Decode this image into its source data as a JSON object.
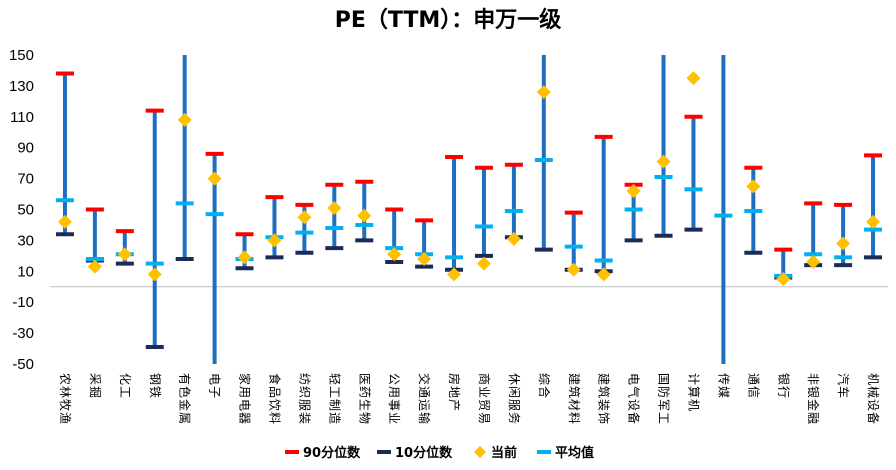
{
  "chart_data": {
    "type": "range",
    "title": "PE（TTM）：申万一级",
    "ylim": [
      -50,
      150
    ],
    "yticks": [
      150,
      130,
      110,
      90,
      70,
      50,
      30,
      10,
      -10,
      -30,
      -50
    ],
    "grid": false,
    "legend_position": "bottom",
    "categories": [
      "农林牧渔",
      "采掘",
      "化工",
      "钢铁",
      "有色金属",
      "电子",
      "家用电器",
      "食品饮料",
      "纺织服装",
      "轻工制造",
      "医药生物",
      "公用事业",
      "交通运输",
      "房地产",
      "商业贸易",
      "休闲服务",
      "综合",
      "建筑材料",
      "建筑装饰",
      "电气设备",
      "国防军工",
      "计算机",
      "传媒",
      "通信",
      "银行",
      "非银金融",
      "汽车",
      "机械设备"
    ],
    "series": [
      {
        "name": "90分位数",
        "color": "#ff0000",
        "values": [
          138,
          50,
          36,
          114,
          150,
          86,
          34,
          58,
          53,
          66,
          68,
          50,
          43,
          84,
          77,
          79,
          150,
          48,
          97,
          66,
          150,
          110,
          150,
          77,
          24,
          54,
          53,
          85
        ]
      },
      {
        "name": "10分位数",
        "color": "#1f5fa8",
        "values": [
          34,
          17,
          15,
          -39,
          18,
          -50,
          12,
          19,
          22,
          25,
          30,
          16,
          13,
          11,
          20,
          32,
          24,
          11,
          10,
          30,
          33,
          37,
          -50,
          22,
          6,
          14,
          14,
          19
        ]
      },
      {
        "name": "当前",
        "color": "#ffc000",
        "values": [
          42,
          13,
          21,
          8,
          108,
          70,
          19,
          30,
          45,
          51,
          46,
          21,
          18,
          8,
          15,
          31,
          126,
          11,
          8,
          62,
          81,
          135,
          null,
          65,
          5,
          16,
          28,
          42
        ]
      },
      {
        "name": "平均值",
        "color": "#00b0f0",
        "values": [
          56,
          18,
          21,
          15,
          54,
          47,
          18,
          32,
          35,
          38,
          40,
          25,
          21,
          19,
          39,
          49,
          82,
          26,
          17,
          50,
          71,
          63,
          46,
          49,
          7,
          21,
          19,
          37
        ]
      }
    ]
  }
}
